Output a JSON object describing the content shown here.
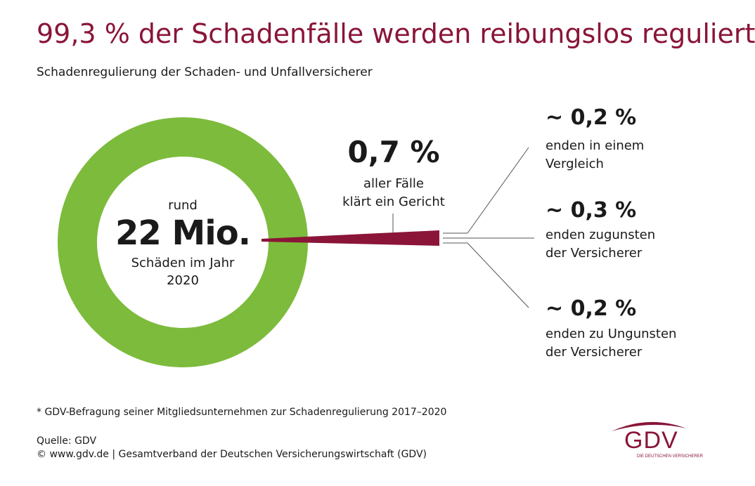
{
  "header": {
    "title": "99,3 % der Schadenfälle werden reibungslos reguliert",
    "subtitle": "Schadenregulierung der Schaden- und Unfallversicherer"
  },
  "center": {
    "prefix": "rund",
    "value": "22 Mio.",
    "unit_line1": "Schäden im Jahr",
    "unit_line2": "2020"
  },
  "court": {
    "pct": "0,7 %",
    "label_line1": "aller Fälle",
    "label_line2": "klärt ein Gericht"
  },
  "branches": [
    {
      "pct": "~ 0,2 %",
      "line1": "enden in einem",
      "line2": "Vergleich"
    },
    {
      "pct": "~ 0,3 %",
      "line1": "enden zugunsten",
      "line2": "der Versicherer"
    },
    {
      "pct": "~ 0,2 %",
      "line1": "enden zu Ungunsten",
      "line2": "der Versicherer"
    }
  ],
  "footer": {
    "footnote": "* GDV-Befragung seiner Mitgliedsunternehmen zur Schadenregulierung 2017–2020",
    "source": "Quelle: GDV",
    "copyright": "© www.gdv.de | Gesamtverband der Deutschen Versicherungswirtschaft (GDV)"
  },
  "logo": {
    "text": "GDV",
    "subtext": "DIE DEUTSCHEN VERSICHERER"
  },
  "colors": {
    "accent": "#8a1538",
    "ring": "#7dbb3c",
    "text": "#1a1a1a",
    "lines": "#555555"
  },
  "chart_data": {
    "type": "pie",
    "title": "99,3 % der Schadenfälle werden reibungslos reguliert",
    "subtitle": "Schadenregulierung der Schaden- und Unfallversicherer",
    "categories": [
      "reibungslos reguliert",
      "klärt ein Gericht"
    ],
    "values": [
      99.3,
      0.7
    ],
    "total_label": "rund 22 Mio. Schäden im Jahr 2020",
    "breakdown": {
      "of": "klärt ein Gericht",
      "categories": [
        "enden in einem Vergleich",
        "enden zugunsten der Versicherer",
        "enden zu Ungunsten der Versicherer"
      ],
      "values": [
        0.2,
        0.3,
        0.2
      ]
    }
  }
}
